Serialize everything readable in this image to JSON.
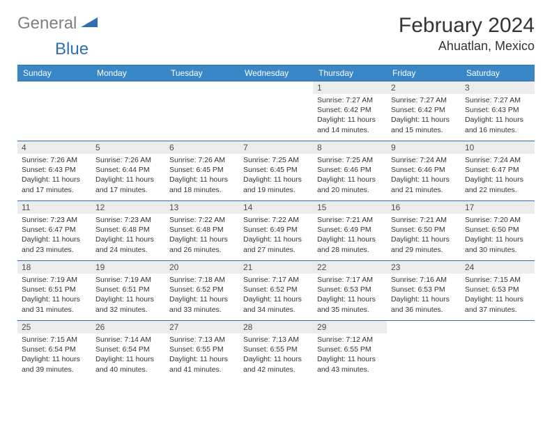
{
  "logo": {
    "gray": "General",
    "blue": "Blue"
  },
  "title": "February 2024",
  "location": "Ahuatlan, Mexico",
  "colors": {
    "header_bg": "#3a87c8",
    "border": "#2f6fb0",
    "daynum_bg": "#ececec",
    "logo_gray": "#808080",
    "logo_blue": "#2f6fb0"
  },
  "weekdays": [
    "Sunday",
    "Monday",
    "Tuesday",
    "Wednesday",
    "Thursday",
    "Friday",
    "Saturday"
  ],
  "weeks": [
    [
      null,
      null,
      null,
      null,
      {
        "n": "1",
        "sr": "7:27 AM",
        "ss": "6:42 PM",
        "dl": "11 hours and 14 minutes."
      },
      {
        "n": "2",
        "sr": "7:27 AM",
        "ss": "6:42 PM",
        "dl": "11 hours and 15 minutes."
      },
      {
        "n": "3",
        "sr": "7:27 AM",
        "ss": "6:43 PM",
        "dl": "11 hours and 16 minutes."
      }
    ],
    [
      {
        "n": "4",
        "sr": "7:26 AM",
        "ss": "6:43 PM",
        "dl": "11 hours and 17 minutes."
      },
      {
        "n": "5",
        "sr": "7:26 AM",
        "ss": "6:44 PM",
        "dl": "11 hours and 17 minutes."
      },
      {
        "n": "6",
        "sr": "7:26 AM",
        "ss": "6:45 PM",
        "dl": "11 hours and 18 minutes."
      },
      {
        "n": "7",
        "sr": "7:25 AM",
        "ss": "6:45 PM",
        "dl": "11 hours and 19 minutes."
      },
      {
        "n": "8",
        "sr": "7:25 AM",
        "ss": "6:46 PM",
        "dl": "11 hours and 20 minutes."
      },
      {
        "n": "9",
        "sr": "7:24 AM",
        "ss": "6:46 PM",
        "dl": "11 hours and 21 minutes."
      },
      {
        "n": "10",
        "sr": "7:24 AM",
        "ss": "6:47 PM",
        "dl": "11 hours and 22 minutes."
      }
    ],
    [
      {
        "n": "11",
        "sr": "7:23 AM",
        "ss": "6:47 PM",
        "dl": "11 hours and 23 minutes."
      },
      {
        "n": "12",
        "sr": "7:23 AM",
        "ss": "6:48 PM",
        "dl": "11 hours and 24 minutes."
      },
      {
        "n": "13",
        "sr": "7:22 AM",
        "ss": "6:48 PM",
        "dl": "11 hours and 26 minutes."
      },
      {
        "n": "14",
        "sr": "7:22 AM",
        "ss": "6:49 PM",
        "dl": "11 hours and 27 minutes."
      },
      {
        "n": "15",
        "sr": "7:21 AM",
        "ss": "6:49 PM",
        "dl": "11 hours and 28 minutes."
      },
      {
        "n": "16",
        "sr": "7:21 AM",
        "ss": "6:50 PM",
        "dl": "11 hours and 29 minutes."
      },
      {
        "n": "17",
        "sr": "7:20 AM",
        "ss": "6:50 PM",
        "dl": "11 hours and 30 minutes."
      }
    ],
    [
      {
        "n": "18",
        "sr": "7:19 AM",
        "ss": "6:51 PM",
        "dl": "11 hours and 31 minutes."
      },
      {
        "n": "19",
        "sr": "7:19 AM",
        "ss": "6:51 PM",
        "dl": "11 hours and 32 minutes."
      },
      {
        "n": "20",
        "sr": "7:18 AM",
        "ss": "6:52 PM",
        "dl": "11 hours and 33 minutes."
      },
      {
        "n": "21",
        "sr": "7:17 AM",
        "ss": "6:52 PM",
        "dl": "11 hours and 34 minutes."
      },
      {
        "n": "22",
        "sr": "7:17 AM",
        "ss": "6:53 PM",
        "dl": "11 hours and 35 minutes."
      },
      {
        "n": "23",
        "sr": "7:16 AM",
        "ss": "6:53 PM",
        "dl": "11 hours and 36 minutes."
      },
      {
        "n": "24",
        "sr": "7:15 AM",
        "ss": "6:53 PM",
        "dl": "11 hours and 37 minutes."
      }
    ],
    [
      {
        "n": "25",
        "sr": "7:15 AM",
        "ss": "6:54 PM",
        "dl": "11 hours and 39 minutes."
      },
      {
        "n": "26",
        "sr": "7:14 AM",
        "ss": "6:54 PM",
        "dl": "11 hours and 40 minutes."
      },
      {
        "n": "27",
        "sr": "7:13 AM",
        "ss": "6:55 PM",
        "dl": "11 hours and 41 minutes."
      },
      {
        "n": "28",
        "sr": "7:13 AM",
        "ss": "6:55 PM",
        "dl": "11 hours and 42 minutes."
      },
      {
        "n": "29",
        "sr": "7:12 AM",
        "ss": "6:55 PM",
        "dl": "11 hours and 43 minutes."
      },
      null,
      null
    ]
  ],
  "labels": {
    "sunrise": "Sunrise: ",
    "sunset": "Sunset: ",
    "daylight": "Daylight: "
  }
}
